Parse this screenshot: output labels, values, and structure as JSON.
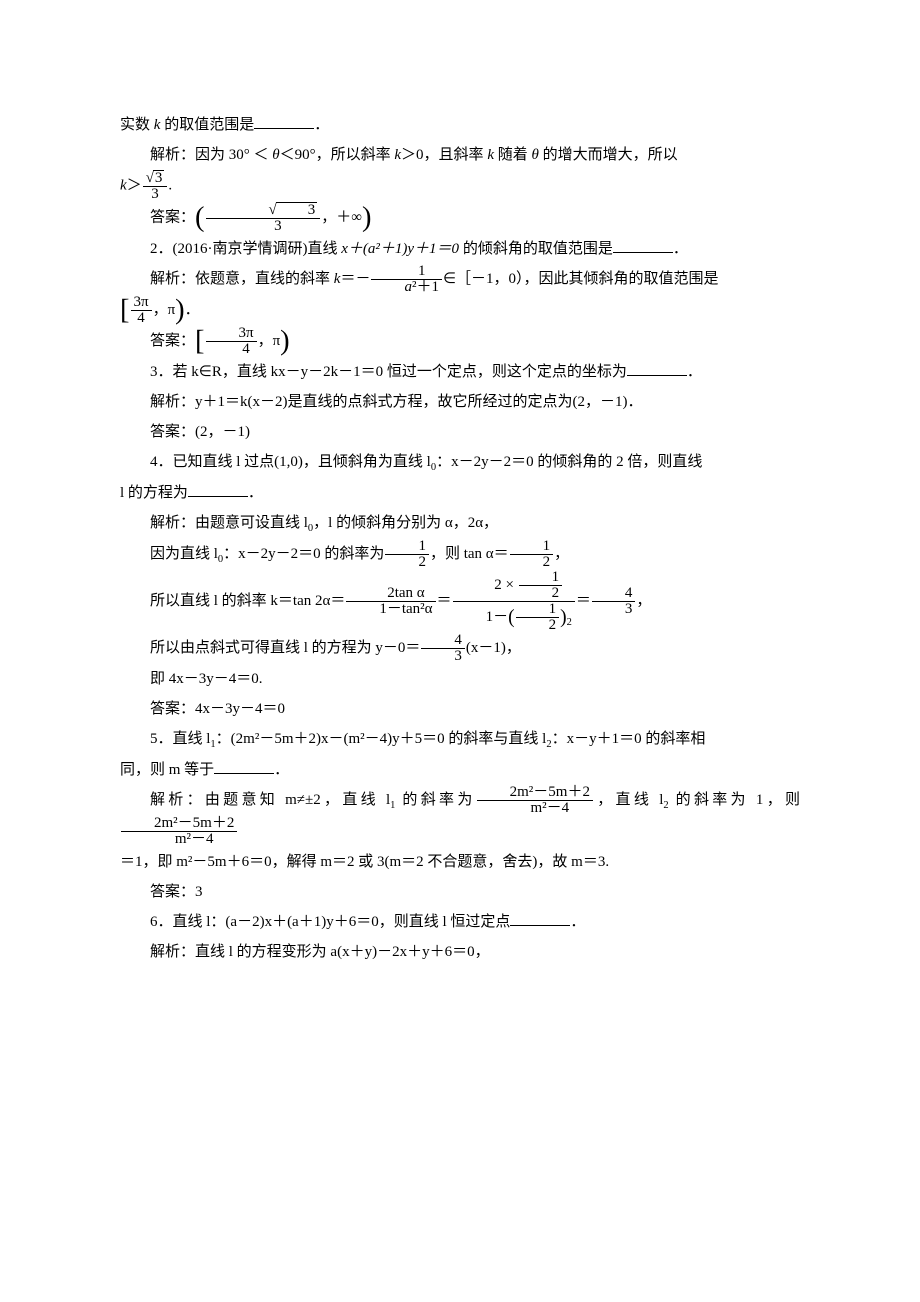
{
  "p1_prefix": "实数 ",
  "p1_k": "k",
  "p1_suffix": " 的取值范围是",
  "p2_a": "解析：因为 30° ＜ ",
  "p2_theta": "θ",
  "p2_b": "＜90°，所以斜率 ",
  "p2_c": "＞0，且斜率 ",
  "p2_d": " 随着 ",
  "p2_e": " 的增大而增大，所以",
  "p3_kgt": "＞",
  "p3_num": "√3",
  "p3_den": "3",
  "p3_dot": ".",
  "p4_ans": "答案：",
  "p4_comma": "，＋∞",
  "q2_a": "2．(2016·南京学情调研)直线 ",
  "q2_expr": "x＋(a²＋1)y＋1＝0",
  "q2_b": " 的倾斜角的取值范围是",
  "q2_sol_a": "解析：依题意，直线的斜率 ",
  "q2_sol_b": "＝－",
  "q2_frac_num": "1",
  "q2_frac_den": "a²＋1",
  "q2_sol_c": "∈［－1，0），因此其倾斜角的取值范围是",
  "q2_int_num": "3π",
  "q2_int_den": "4",
  "q2_int_sep": "，π",
  "q2_ans_label": "答案：",
  "q3": "3．若 k∈R，直线 kx－y－2k－1＝0 恒过一个定点，则这个定点的坐标为",
  "q3_sol": "解析：y＋1＝k(x－2)是直线的点斜式方程，故它所经过的定点为(2，－1)．",
  "q3_ans": "答案：(2，－1)",
  "q4_a": "4．已知直线 l 过点(1,0)，且倾斜角为直线 l",
  "q4_b": "：x－2y－2＝0 的倾斜角的 2 倍，则直线",
  "q4_c": "l 的方程为",
  "q4_sol_a": "解析：由题意可设直线 l",
  "q4_sol_b": "，l 的倾斜角分别为 α，2α，",
  "q4_line2_a": "因为直线 l",
  "q4_line2_b": "：x－2y－2＝0 的斜率为",
  "q4_line2_c": "，则 tan α＝",
  "q4_half_num": "1",
  "q4_half_den": "2",
  "q4_line3_a": "所以直线 l 的斜率 k＝tan 2α＝",
  "q4_f1_num": "2tan α",
  "q4_f1_den": "1－tan²α",
  "q4_eq": "＝",
  "q4_f2_num": "2 × ",
  "q4_f3_num": "4",
  "q4_f3_den": "3",
  "q4_line4_a": "所以由点斜式可得直线 l 的方程为 y－0＝",
  "q4_line4_b": "(x－1)，",
  "q4_line5": "即 4x－3y－4＝0.",
  "q4_ans": "答案：4x－3y－4＝0",
  "q5_a": "5．直线 l",
  "q5_b": "：(2m²－5m＋2)x－(m²－4)y＋5＝0 的斜率与直线 l",
  "q5_c": "：x－y＋1＝0 的斜率相",
  "q5_d": "同，则 m 等于",
  "q5_sol_a": "解析：由题意知 m≠±2，直线 l",
  "q5_sol_b": " 的斜率为",
  "q5_fnum": "2m²－5m＋2",
  "q5_fden": "m²－4",
  "q5_sol_c": "，直线 l",
  "q5_sol_d": " 的斜率为 1，则",
  "q5_sol_e": "＝1，即 m²－5m＋6＝0，解得 m＝2 或 3(m＝2 不合题意，舍去)，故 m＝3.",
  "q5_ans": "答案：3",
  "q6_a": "6．直线 l：(a－2)x＋(a＋1)y＋6＝0，则直线 l 恒过定点",
  "q6_sol": "解析：直线 l 的方程变形为 a(x＋y)－2x＋y＋6＝0，",
  "zero": "0",
  "one": "1",
  "two": "2",
  "comma": "，"
}
